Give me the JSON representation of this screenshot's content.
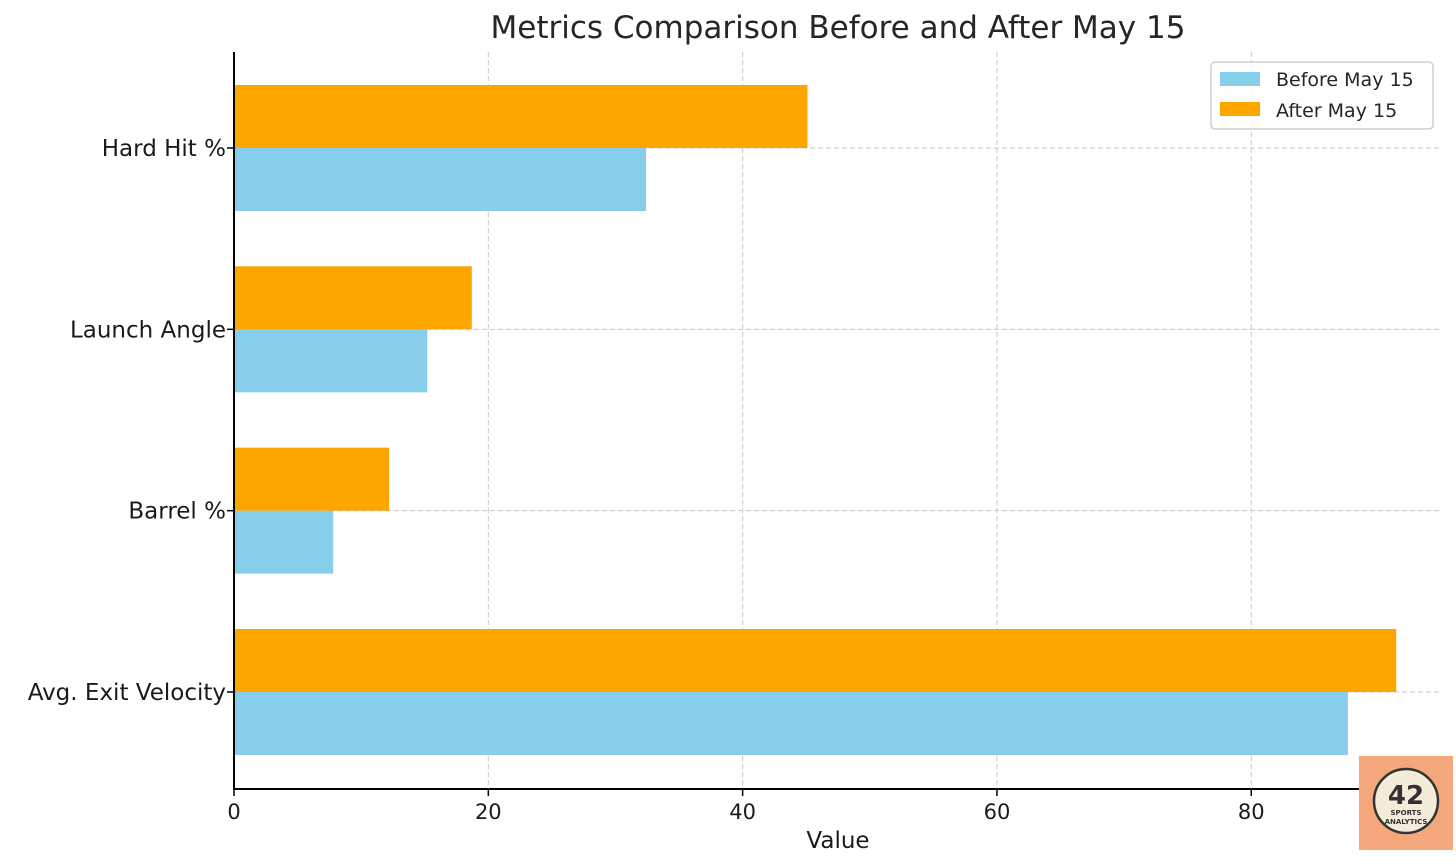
{
  "chart_data": {
    "type": "bar",
    "orientation": "horizontal",
    "title": "Metrics Comparison Before and After May 15",
    "xlabel": "Value",
    "ylabel": "",
    "xlim": [
      0,
      95
    ],
    "xticks": [
      0,
      20,
      40,
      60,
      80
    ],
    "categories": [
      "Avg. Exit Velocity",
      "Barrel %",
      "Launch Angle",
      "Hard Hit %"
    ],
    "series": [
      {
        "name": "Before May 15",
        "color": "#87CEEB",
        "values": [
          87.6,
          7.8,
          15.2,
          32.4
        ]
      },
      {
        "name": "After May 15",
        "color": "#FFA500",
        "values": [
          91.4,
          12.2,
          18.7,
          45.1
        ]
      }
    ],
    "grid": true,
    "legend_position": "top-right"
  },
  "watermark": {
    "text_main": "42",
    "text_sub1": "SPORTS",
    "text_sub2": "ANALYTICS",
    "background": "#F4A77A"
  }
}
